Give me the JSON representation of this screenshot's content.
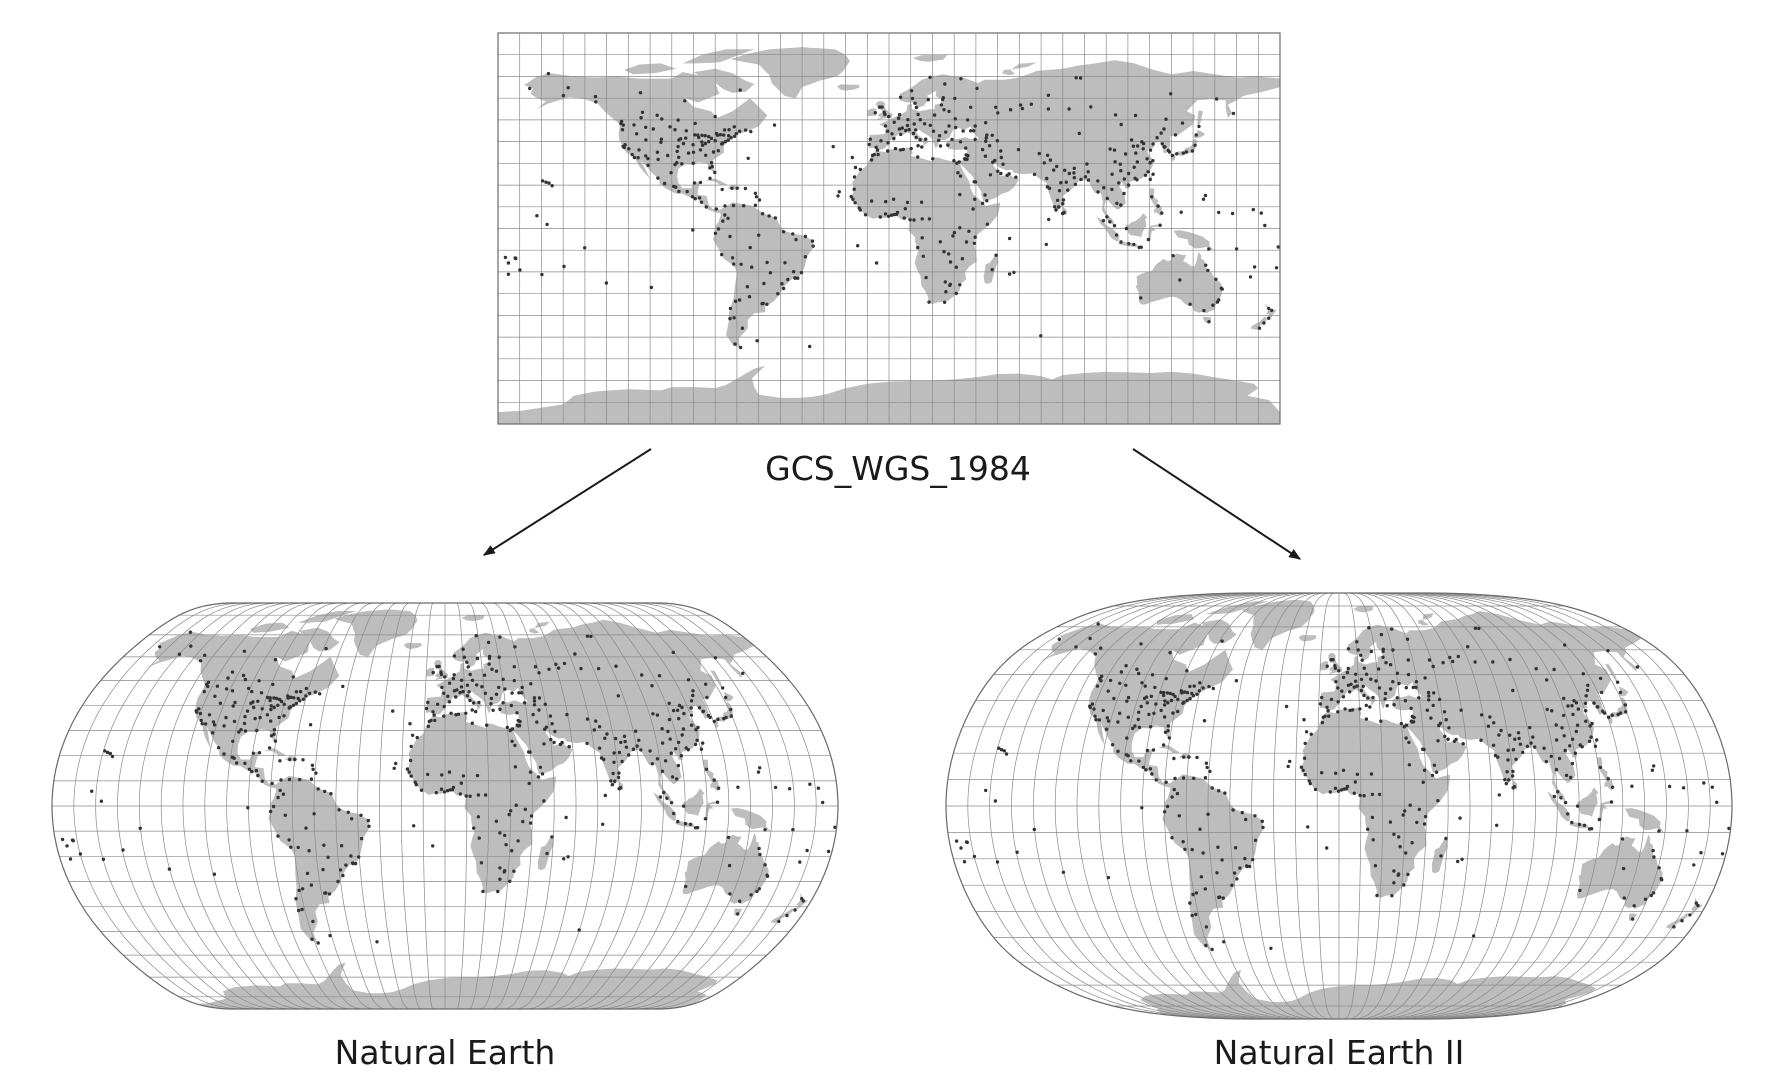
{
  "labels": {
    "source_projection": "GCS_WGS_1984",
    "left_projection": "Natural Earth",
    "right_projection": "Natural Earth II"
  },
  "colors": {
    "land": "#bdbdbd",
    "graticule": "#8a8a8a",
    "points": "#333333",
    "arrow": "#1a1a1a",
    "text": "#1a1a1a"
  },
  "graticule": {
    "meridian_step_deg": 10,
    "parallel_step_deg": 10
  }
}
